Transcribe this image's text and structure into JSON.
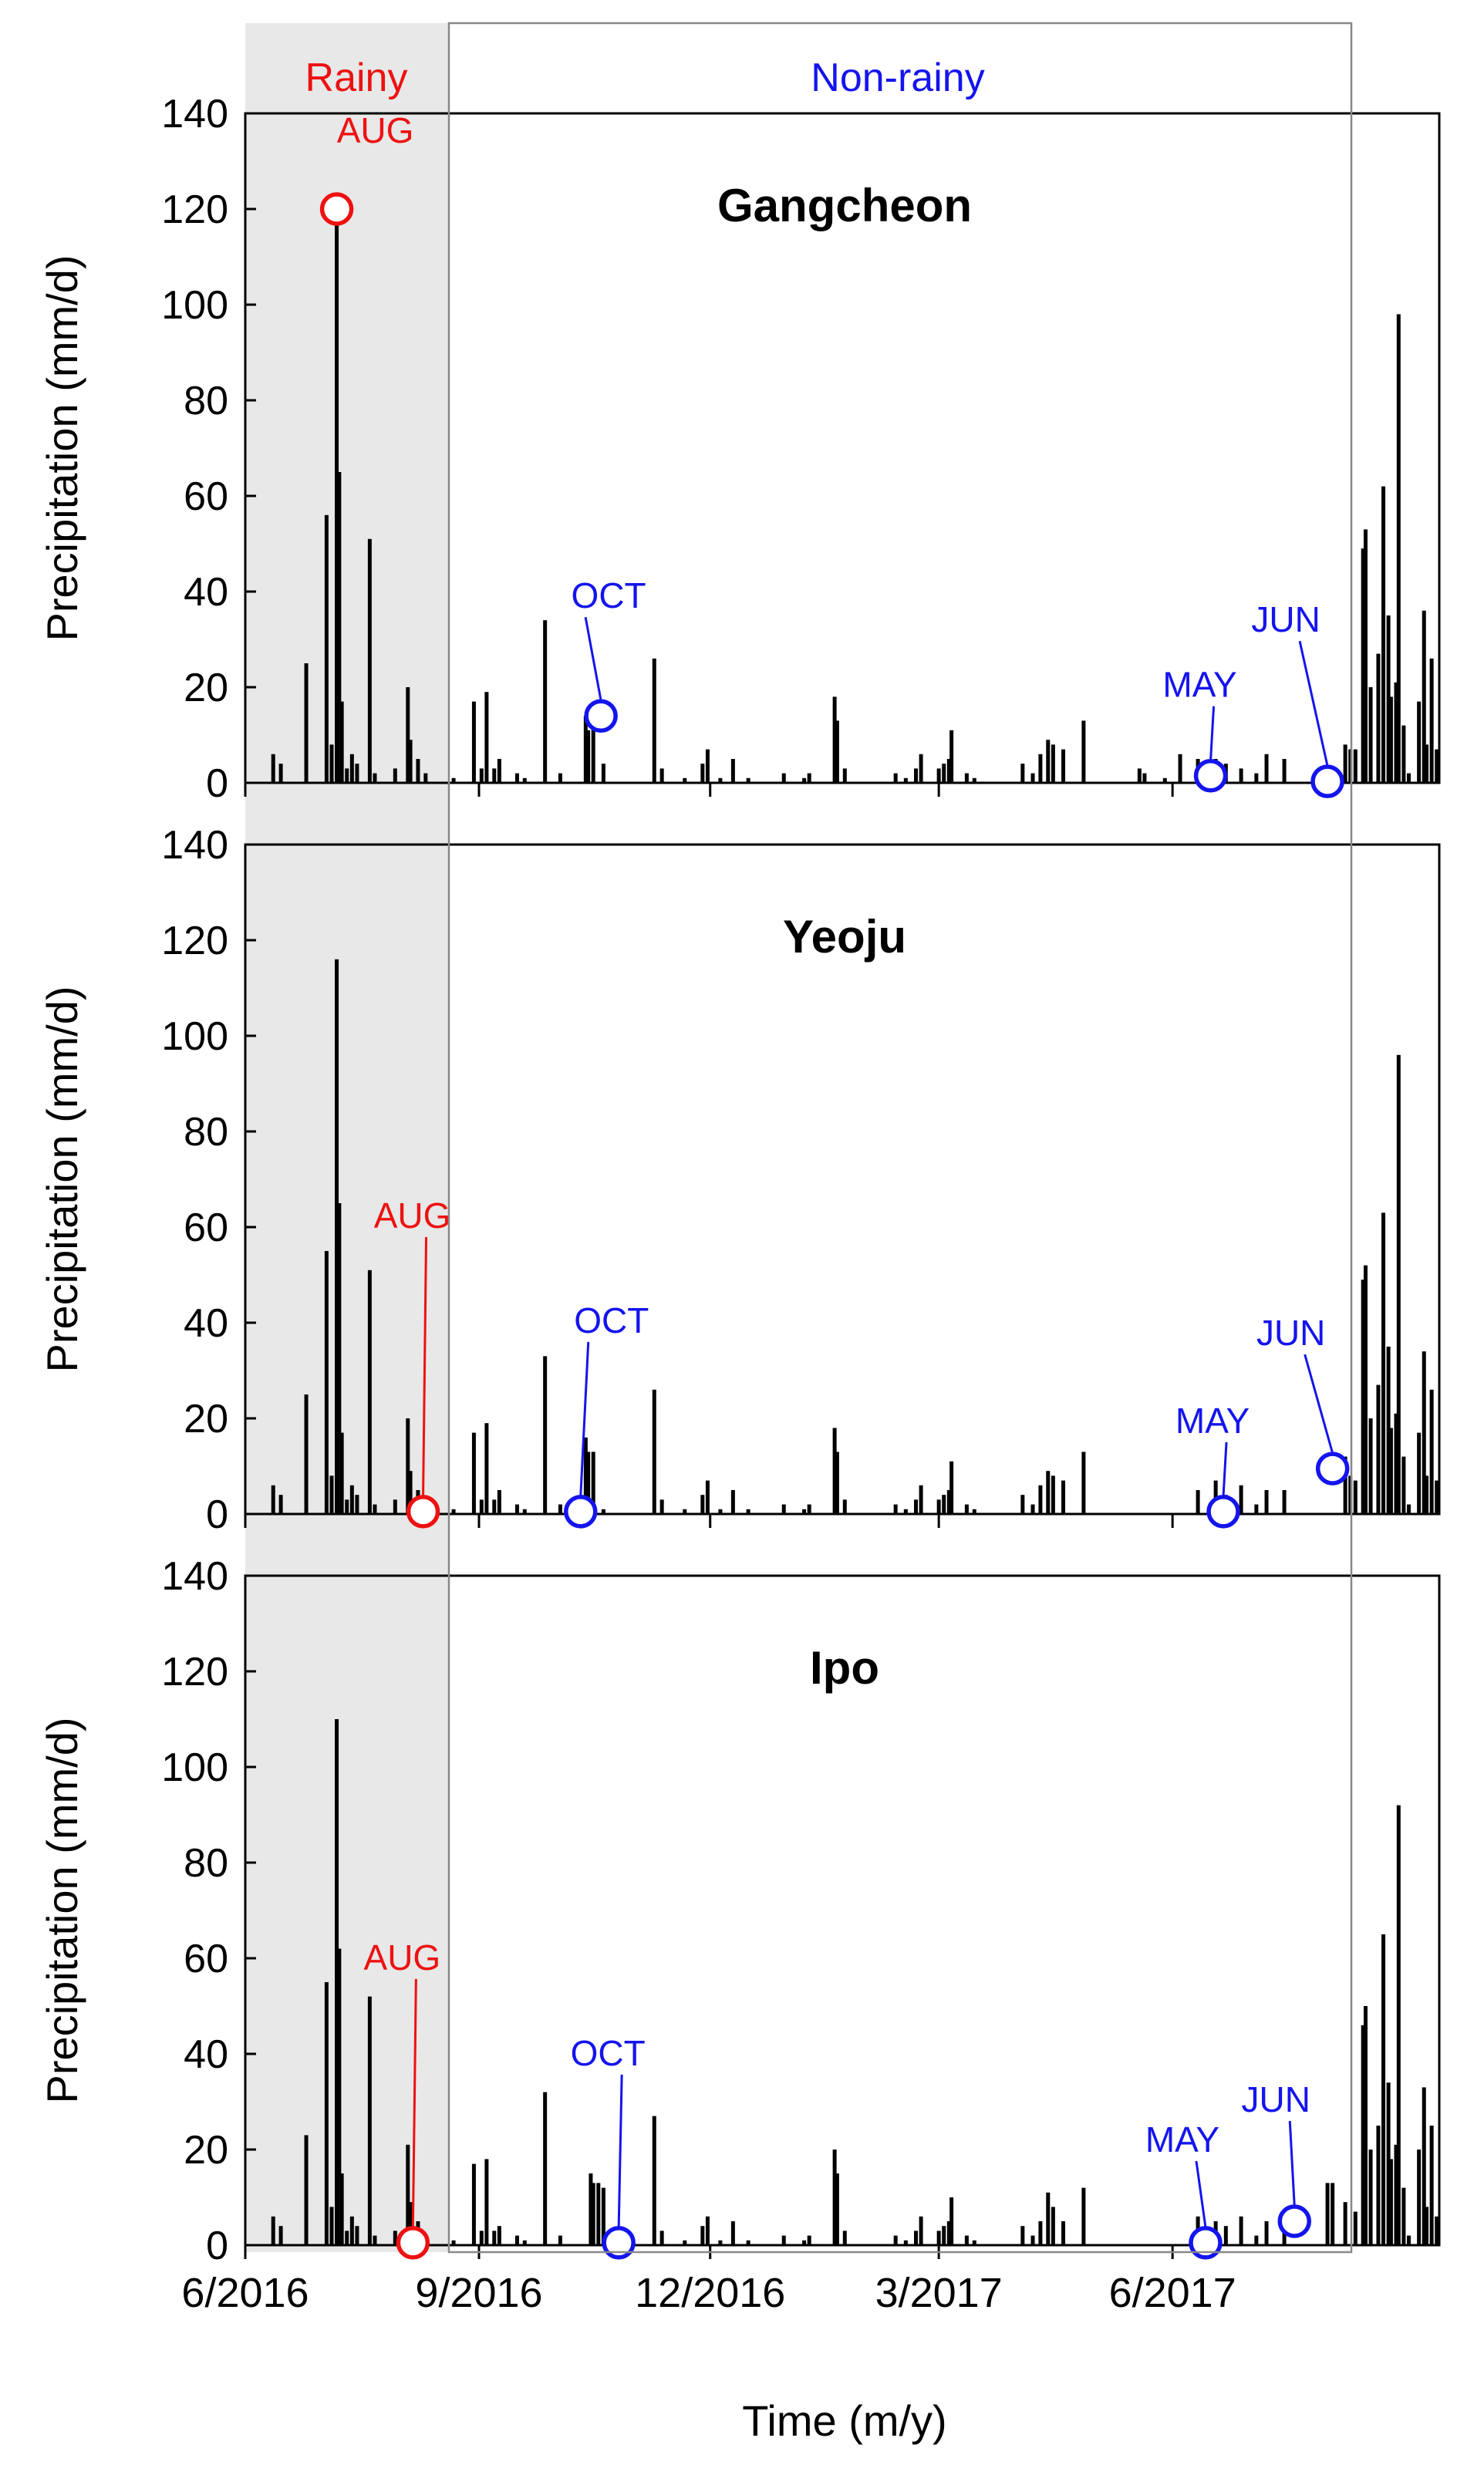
{
  "figure": {
    "xlabel": "Time (m/y)",
    "ylabel": "Precipitation (mm/d)",
    "x_ticks": [
      "6/2016",
      "9/2016",
      "12/2016",
      "3/2017",
      "6/2017"
    ],
    "y_ticks": [
      "0",
      "20",
      "40",
      "60",
      "80",
      "100",
      "120",
      "140"
    ],
    "period_labels": {
      "rainy": "Rainy",
      "non_rainy": "Non-rainy"
    },
    "colors": {
      "rainy": "#ee1111",
      "non_rainy": "#1414ee",
      "bars": "#000000",
      "shade": "#e8e8e8",
      "box": "#888888"
    }
  },
  "chart_data": [
    {
      "type": "bar",
      "title": "Gangcheon",
      "xlabel": "Time (m/y)",
      "ylabel": "Precipitation (mm/d)",
      "ylim": [
        0,
        140
      ],
      "x_unit": "days since 2016-06-01",
      "xlim": [
        0,
        470
      ],
      "rainy_period_days": [
        0,
        80
      ],
      "non_rainy_period_days": [
        80,
        435
      ],
      "bars": [
        [
          11,
          6
        ],
        [
          14,
          4
        ],
        [
          24,
          25
        ],
        [
          32,
          56
        ],
        [
          34,
          8
        ],
        [
          36,
          118
        ],
        [
          37,
          65
        ],
        [
          38,
          17
        ],
        [
          40,
          3
        ],
        [
          42,
          6
        ],
        [
          44,
          4
        ],
        [
          49,
          51
        ],
        [
          51,
          2
        ],
        [
          59,
          3
        ],
        [
          64,
          20
        ],
        [
          65,
          9
        ],
        [
          68,
          5
        ],
        [
          71,
          2
        ],
        [
          82,
          1
        ],
        [
          90,
          17
        ],
        [
          93,
          3
        ],
        [
          95,
          19
        ],
        [
          98,
          3
        ],
        [
          100,
          5
        ],
        [
          107,
          2
        ],
        [
          110,
          1
        ],
        [
          118,
          34
        ],
        [
          124,
          2
        ],
        [
          134,
          14
        ],
        [
          135,
          11
        ],
        [
          137,
          13
        ],
        [
          141,
          4
        ],
        [
          161,
          26
        ],
        [
          164,
          3
        ],
        [
          173,
          1
        ],
        [
          180,
          4
        ],
        [
          182,
          7
        ],
        [
          187,
          1
        ],
        [
          192,
          5
        ],
        [
          198,
          1
        ],
        [
          212,
          2
        ],
        [
          220,
          1
        ],
        [
          222,
          2
        ],
        [
          232,
          18
        ],
        [
          233,
          13
        ],
        [
          236,
          3
        ],
        [
          256,
          2
        ],
        [
          260,
          1
        ],
        [
          264,
          3
        ],
        [
          266,
          6
        ],
        [
          273,
          3
        ],
        [
          275,
          4
        ],
        [
          277,
          5
        ],
        [
          278,
          11
        ],
        [
          284,
          2
        ],
        [
          287,
          1
        ],
        [
          306,
          4
        ],
        [
          310,
          2
        ],
        [
          313,
          6
        ],
        [
          316,
          9
        ],
        [
          318,
          8
        ],
        [
          322,
          7
        ],
        [
          330,
          13
        ],
        [
          352,
          3
        ],
        [
          354,
          2
        ],
        [
          362,
          1
        ],
        [
          368,
          6
        ],
        [
          375,
          5
        ],
        [
          382,
          5
        ],
        [
          386,
          4
        ],
        [
          392,
          3
        ],
        [
          398,
          2
        ],
        [
          402,
          6
        ],
        [
          409,
          5
        ],
        [
          433,
          8
        ],
        [
          435,
          7
        ],
        [
          437,
          7
        ],
        [
          440,
          49
        ],
        [
          441,
          53
        ],
        [
          443,
          20
        ],
        [
          446,
          27
        ],
        [
          448,
          62
        ],
        [
          450,
          35
        ],
        [
          451,
          18
        ],
        [
          453,
          21
        ],
        [
          454,
          98
        ],
        [
          456,
          12
        ],
        [
          458,
          2
        ],
        [
          462,
          17
        ],
        [
          464,
          36
        ],
        [
          465,
          8
        ],
        [
          467,
          26
        ],
        [
          469,
          7
        ]
      ],
      "markers": [
        {
          "label": "AUG",
          "period": "rainy",
          "day": 36,
          "value": 120
        },
        {
          "label": "OCT",
          "period": "non_rainy",
          "day": 140,
          "value": 14
        },
        {
          "label": "MAY",
          "period": "non_rainy",
          "day": 380,
          "value": 1.5
        },
        {
          "label": "JUN",
          "period": "non_rainy",
          "day": 426,
          "value": 0.3
        }
      ]
    },
    {
      "type": "bar",
      "title": "Yeoju",
      "xlabel": "Time (m/y)",
      "ylabel": "Precipitation (mm/d)",
      "ylim": [
        0,
        140
      ],
      "x_unit": "days since 2016-06-01",
      "xlim": [
        0,
        470
      ],
      "rainy_period_days": [
        0,
        80
      ],
      "non_rainy_period_days": [
        80,
        435
      ],
      "bars": [
        [
          11,
          6
        ],
        [
          14,
          4
        ],
        [
          24,
          25
        ],
        [
          32,
          55
        ],
        [
          34,
          8
        ],
        [
          36,
          116
        ],
        [
          37,
          65
        ],
        [
          38,
          17
        ],
        [
          40,
          3
        ],
        [
          42,
          6
        ],
        [
          44,
          4
        ],
        [
          49,
          51
        ],
        [
          51,
          2
        ],
        [
          59,
          3
        ],
        [
          64,
          20
        ],
        [
          65,
          9
        ],
        [
          68,
          5
        ],
        [
          71,
          2
        ],
        [
          82,
          1
        ],
        [
          90,
          17
        ],
        [
          93,
          3
        ],
        [
          95,
          19
        ],
        [
          98,
          3
        ],
        [
          100,
          5
        ],
        [
          107,
          2
        ],
        [
          110,
          1
        ],
        [
          118,
          33
        ],
        [
          124,
          2
        ],
        [
          134,
          16
        ],
        [
          135,
          13
        ],
        [
          137,
          13
        ],
        [
          141,
          1
        ],
        [
          161,
          26
        ],
        [
          164,
          3
        ],
        [
          173,
          1
        ],
        [
          180,
          4
        ],
        [
          182,
          7
        ],
        [
          187,
          1
        ],
        [
          192,
          5
        ],
        [
          198,
          1
        ],
        [
          212,
          2
        ],
        [
          220,
          1
        ],
        [
          222,
          2
        ],
        [
          232,
          18
        ],
        [
          233,
          13
        ],
        [
          236,
          3
        ],
        [
          256,
          2
        ],
        [
          260,
          1
        ],
        [
          264,
          3
        ],
        [
          266,
          6
        ],
        [
          273,
          3
        ],
        [
          275,
          4
        ],
        [
          277,
          5
        ],
        [
          278,
          11
        ],
        [
          284,
          2
        ],
        [
          287,
          1
        ],
        [
          306,
          4
        ],
        [
          310,
          2
        ],
        [
          313,
          6
        ],
        [
          316,
          9
        ],
        [
          318,
          8
        ],
        [
          322,
          7
        ],
        [
          330,
          13
        ],
        [
          375,
          5
        ],
        [
          382,
          7
        ],
        [
          386,
          4
        ],
        [
          392,
          6
        ],
        [
          398,
          2
        ],
        [
          402,
          5
        ],
        [
          409,
          5
        ],
        [
          433,
          12
        ],
        [
          435,
          8
        ],
        [
          437,
          7
        ],
        [
          440,
          49
        ],
        [
          441,
          52
        ],
        [
          443,
          20
        ],
        [
          446,
          27
        ],
        [
          448,
          63
        ],
        [
          450,
          35
        ],
        [
          451,
          18
        ],
        [
          453,
          21
        ],
        [
          454,
          96
        ],
        [
          456,
          12
        ],
        [
          458,
          2
        ],
        [
          462,
          17
        ],
        [
          464,
          34
        ],
        [
          465,
          8
        ],
        [
          467,
          26
        ],
        [
          469,
          7
        ]
      ],
      "markers": [
        {
          "label": "AUG",
          "period": "rainy",
          "day": 70,
          "value": 0.5
        },
        {
          "label": "OCT",
          "period": "non_rainy",
          "day": 132,
          "value": 0.5
        },
        {
          "label": "MAY",
          "period": "non_rainy",
          "day": 385,
          "value": 0.5
        },
        {
          "label": "JUN",
          "period": "non_rainy",
          "day": 428,
          "value": 9.5
        }
      ]
    },
    {
      "type": "bar",
      "title": "Ipo",
      "xlabel": "Time (m/y)",
      "ylabel": "Precipitation (mm/d)",
      "ylim": [
        0,
        140
      ],
      "x_unit": "days since 2016-06-01",
      "xlim": [
        0,
        470
      ],
      "rainy_period_days": [
        0,
        80
      ],
      "non_rainy_period_days": [
        80,
        435
      ],
      "bars": [
        [
          11,
          6
        ],
        [
          14,
          4
        ],
        [
          24,
          23
        ],
        [
          32,
          55
        ],
        [
          34,
          8
        ],
        [
          36,
          110
        ],
        [
          37,
          62
        ],
        [
          38,
          15
        ],
        [
          40,
          3
        ],
        [
          42,
          6
        ],
        [
          44,
          4
        ],
        [
          49,
          52
        ],
        [
          51,
          2
        ],
        [
          59,
          3
        ],
        [
          64,
          21
        ],
        [
          65,
          9
        ],
        [
          68,
          5
        ],
        [
          71,
          2
        ],
        [
          82,
          1
        ],
        [
          90,
          17
        ],
        [
          93,
          3
        ],
        [
          95,
          18
        ],
        [
          98,
          3
        ],
        [
          100,
          4
        ],
        [
          107,
          2
        ],
        [
          110,
          1
        ],
        [
          118,
          32
        ],
        [
          124,
          2
        ],
        [
          136,
          15
        ],
        [
          137,
          13
        ],
        [
          139,
          13
        ],
        [
          141,
          12
        ],
        [
          161,
          27
        ],
        [
          164,
          3
        ],
        [
          173,
          1
        ],
        [
          180,
          4
        ],
        [
          182,
          6
        ],
        [
          187,
          1
        ],
        [
          192,
          5
        ],
        [
          198,
          1
        ],
        [
          212,
          2
        ],
        [
          220,
          1
        ],
        [
          222,
          2
        ],
        [
          232,
          20
        ],
        [
          233,
          15
        ],
        [
          236,
          3
        ],
        [
          256,
          2
        ],
        [
          260,
          1
        ],
        [
          264,
          3
        ],
        [
          266,
          6
        ],
        [
          273,
          3
        ],
        [
          275,
          4
        ],
        [
          277,
          5
        ],
        [
          278,
          10
        ],
        [
          284,
          2
        ],
        [
          287,
          1
        ],
        [
          306,
          4
        ],
        [
          310,
          2
        ],
        [
          313,
          5
        ],
        [
          316,
          11
        ],
        [
          318,
          8
        ],
        [
          322,
          5
        ],
        [
          330,
          12
        ],
        [
          375,
          6
        ],
        [
          382,
          5
        ],
        [
          386,
          4
        ],
        [
          392,
          6
        ],
        [
          398,
          2
        ],
        [
          402,
          5
        ],
        [
          409,
          6
        ],
        [
          426,
          13
        ],
        [
          428,
          13
        ],
        [
          433,
          9
        ],
        [
          437,
          7
        ],
        [
          440,
          46
        ],
        [
          441,
          50
        ],
        [
          443,
          20
        ],
        [
          446,
          25
        ],
        [
          448,
          65
        ],
        [
          450,
          34
        ],
        [
          451,
          18
        ],
        [
          453,
          21
        ],
        [
          454,
          92
        ],
        [
          456,
          12
        ],
        [
          458,
          2
        ],
        [
          462,
          20
        ],
        [
          464,
          33
        ],
        [
          465,
          8
        ],
        [
          467,
          25
        ],
        [
          469,
          6
        ]
      ],
      "markers": [
        {
          "label": "AUG",
          "period": "rainy",
          "day": 66,
          "value": 0.5
        },
        {
          "label": "OCT",
          "period": "non_rainy",
          "day": 147,
          "value": 0.5
        },
        {
          "label": "MAY",
          "period": "non_rainy",
          "day": 378,
          "value": 0.5
        },
        {
          "label": "JUN",
          "period": "non_rainy",
          "day": 413,
          "value": 5
        }
      ]
    }
  ]
}
